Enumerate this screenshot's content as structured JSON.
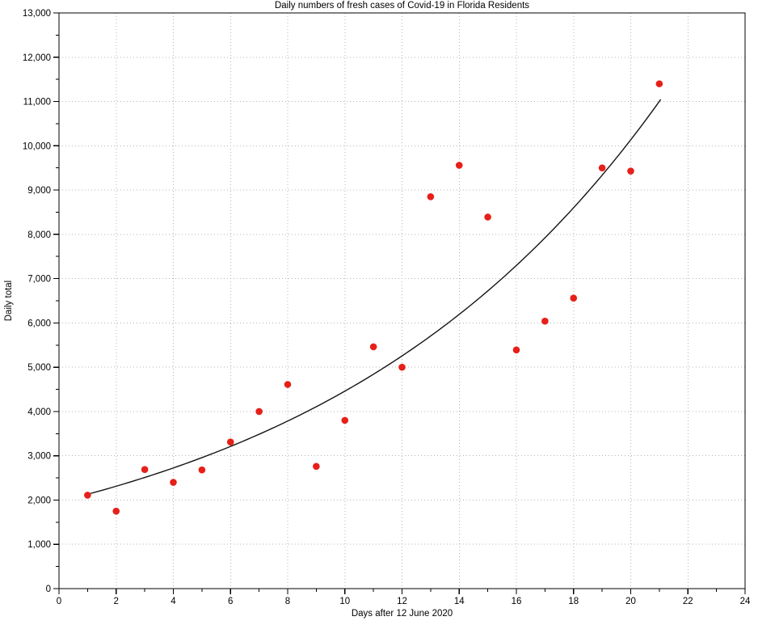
{
  "chart_data": {
    "type": "scatter",
    "title": "Daily numbers of fresh cases of Covid-19 in Florida Residents",
    "xlabel": "Days after 12 June 2020",
    "ylabel": "Daily total",
    "xlim": [
      0,
      24
    ],
    "ylim": [
      0,
      13000
    ],
    "x_major_step": 2,
    "x_minor_step": 1,
    "y_major_step": 1000,
    "y_minor_step": 500,
    "grid": true,
    "legend": "none",
    "marker_color": "#e62019",
    "x": [
      1,
      2,
      3,
      4,
      5,
      6,
      7,
      8,
      9,
      10,
      11,
      12,
      13,
      14,
      15,
      16,
      17,
      18,
      19,
      20,
      21
    ],
    "y": [
      2110,
      1750,
      2690,
      2400,
      2680,
      3310,
      4000,
      4610,
      2760,
      3800,
      5460,
      5000,
      8850,
      9560,
      8390,
      5390,
      6040,
      6560,
      9500,
      9430,
      11400
    ],
    "fit_curve": {
      "type": "exponential",
      "a": 1962,
      "b": 0.0821,
      "x_range": [
        0.97,
        21.05
      ],
      "color": "#141414"
    }
  }
}
